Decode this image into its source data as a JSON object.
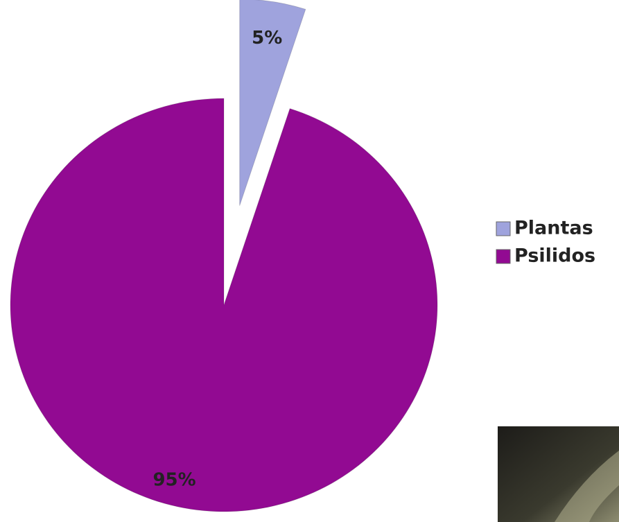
{
  "chart_data": {
    "type": "pie",
    "categories": [
      "Plantas",
      "Psilidos"
    ],
    "values": [
      5,
      95
    ],
    "value_labels": [
      "5%",
      "95%"
    ],
    "colors": [
      "#9fa3dd",
      "#920a92"
    ],
    "legend": "right"
  }
}
